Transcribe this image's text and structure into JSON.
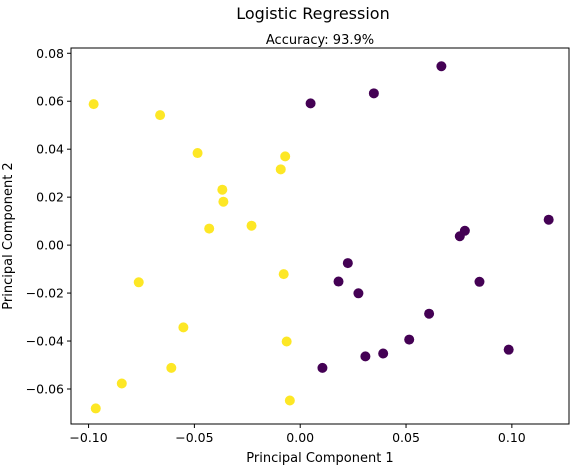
{
  "chart_data": {
    "type": "scatter",
    "title": "Logistic Regression",
    "subtitle": "Accuracy: 93.9%",
    "xlabel": "Principal Component 1",
    "ylabel": "Principal Component 2",
    "xlim": [
      -0.1083,
      0.127
    ],
    "ylim": [
      -0.0746,
      0.0822
    ],
    "xticks": [
      -0.1,
      -0.05,
      0.0,
      0.05,
      0.1
    ],
    "xtick_labels": [
      "−0.10",
      "−0.05",
      "0.00",
      "0.05",
      "0.10"
    ],
    "yticks": [
      -0.06,
      -0.04,
      -0.02,
      0.0,
      0.02,
      0.04,
      0.06,
      0.08
    ],
    "ytick_labels": [
      "−0.06",
      "−0.04",
      "−0.02",
      "0.00",
      "0.02",
      "0.04",
      "0.06",
      "0.08"
    ],
    "grid": false,
    "class_colors": {
      "yellow": "#fde725",
      "purple": "#440154"
    },
    "points": [
      {
        "x": -0.0976,
        "y": 0.0588,
        "c": "yellow"
      },
      {
        "x": -0.0662,
        "y": 0.0542,
        "c": "yellow"
      },
      {
        "x": -0.0485,
        "y": 0.0384,
        "c": "yellow"
      },
      {
        "x": -0.0071,
        "y": 0.037,
        "c": "yellow"
      },
      {
        "x": -0.0092,
        "y": 0.0316,
        "c": "yellow"
      },
      {
        "x": -0.0368,
        "y": 0.0231,
        "c": "yellow"
      },
      {
        "x": -0.0363,
        "y": 0.0181,
        "c": "yellow"
      },
      {
        "x": -0.043,
        "y": 0.0069,
        "c": "yellow"
      },
      {
        "x": -0.023,
        "y": 0.0081,
        "c": "yellow"
      },
      {
        "x": -0.0078,
        "y": -0.0121,
        "c": "yellow"
      },
      {
        "x": -0.0763,
        "y": -0.0155,
        "c": "yellow"
      },
      {
        "x": -0.0552,
        "y": -0.0343,
        "c": "yellow"
      },
      {
        "x": -0.0064,
        "y": -0.0402,
        "c": "yellow"
      },
      {
        "x": -0.0609,
        "y": -0.0512,
        "c": "yellow"
      },
      {
        "x": -0.0843,
        "y": -0.0577,
        "c": "yellow"
      },
      {
        "x": -0.0966,
        "y": -0.0681,
        "c": "yellow"
      },
      {
        "x": -0.0049,
        "y": -0.0648,
        "c": "yellow"
      },
      {
        "x": 0.0049,
        "y": 0.0591,
        "c": "purple"
      },
      {
        "x": 0.0348,
        "y": 0.0633,
        "c": "purple"
      },
      {
        "x": 0.0667,
        "y": 0.0746,
        "c": "purple"
      },
      {
        "x": 0.1174,
        "y": 0.0106,
        "c": "purple"
      },
      {
        "x": 0.0778,
        "y": 0.006,
        "c": "purple"
      },
      {
        "x": 0.0754,
        "y": 0.0037,
        "c": "purple"
      },
      {
        "x": 0.0225,
        "y": -0.0075,
        "c": "purple"
      },
      {
        "x": 0.0181,
        "y": -0.0152,
        "c": "purple"
      },
      {
        "x": 0.0275,
        "y": -0.0201,
        "c": "purple"
      },
      {
        "x": 0.0847,
        "y": -0.0153,
        "c": "purple"
      },
      {
        "x": 0.0609,
        "y": -0.0286,
        "c": "purple"
      },
      {
        "x": 0.0515,
        "y": -0.0394,
        "c": "purple"
      },
      {
        "x": 0.0985,
        "y": -0.0436,
        "c": "purple"
      },
      {
        "x": 0.0308,
        "y": -0.0464,
        "c": "purple"
      },
      {
        "x": 0.0392,
        "y": -0.0452,
        "c": "purple"
      },
      {
        "x": 0.0105,
        "y": -0.0512,
        "c": "purple"
      }
    ]
  }
}
